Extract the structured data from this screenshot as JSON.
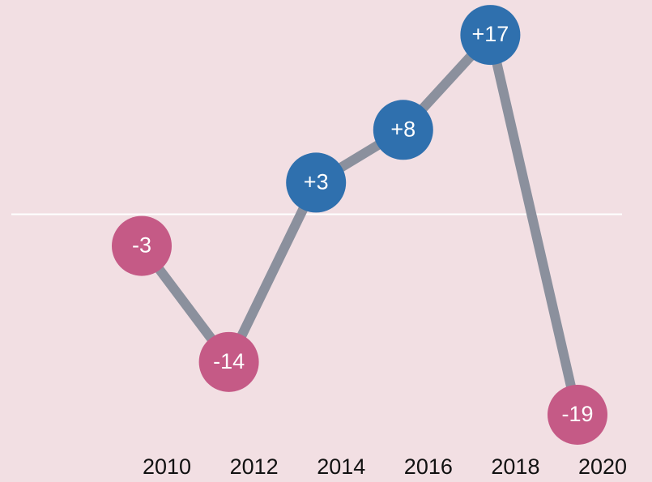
{
  "chart_data": {
    "type": "line",
    "categories": [
      "2010",
      "2012",
      "2014",
      "2016",
      "2018",
      "2020"
    ],
    "values": [
      -3,
      -14,
      3,
      8,
      17,
      -19
    ],
    "value_labels": [
      "-3",
      "-14",
      "+3",
      "+8",
      "+17",
      "-19"
    ],
    "ylim": [
      -20,
      20
    ],
    "line_color": "#8b909d",
    "positive_color": "#2f70ae",
    "negative_color": "#c55a86",
    "zero_line_color": "#ffffff",
    "background": "#f2dfe3"
  }
}
